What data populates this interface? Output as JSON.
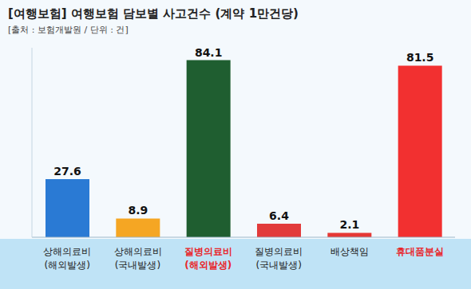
{
  "chart_data": {
    "type": "bar",
    "title": "[여행보험] 여행보험 담보별 사고건수 (계약 1만건당)",
    "subtitle": "[출처 : 보험개발원 / 단위 : 건]",
    "categories": [
      "상해의료비\n(해외발생)",
      "상해의료비\n(국내발생)",
      "질병의료비\n(해외발생)",
      "질병의료비\n(국내발생)",
      "배상책임",
      "휴대품분실"
    ],
    "values": [
      27.6,
      8.9,
      84.1,
      6.4,
      2.1,
      81.5
    ],
    "colors": [
      "#2a7ad4",
      "#f5a623",
      "#1f5e30",
      "#e23b3b",
      "#e53935",
      "#f23030"
    ],
    "ylim": [
      0,
      90
    ],
    "data_labels": true,
    "tick_labels": "x",
    "grid": false
  }
}
